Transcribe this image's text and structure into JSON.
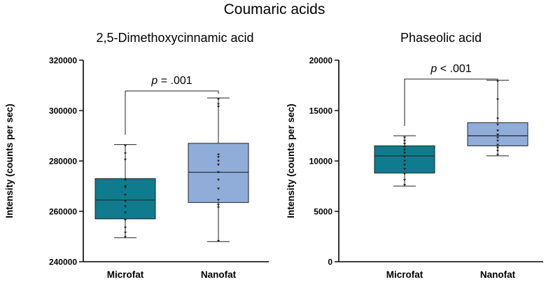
{
  "figure_title": "Coumaric acids",
  "chart_data": [
    {
      "type": "box",
      "title": "2,5-Dimethoxycinnamic acid",
      "ylabel": "Intensity (counts per sec)",
      "xlabel": "",
      "ylim": [
        240000,
        320000
      ],
      "yticks": [
        240000,
        260000,
        280000,
        300000,
        320000
      ],
      "categories": [
        "Microfat",
        "Nanofat"
      ],
      "colors": [
        "#0e7c8e",
        "#8fadd8"
      ],
      "boxes": [
        {
          "name": "Microfat",
          "min": 249500,
          "q1": 257000,
          "median": 264500,
          "q3": 273000,
          "max": 286500,
          "points": [
            249800,
            251500,
            253500,
            256500,
            259500,
            262000,
            264000,
            266500,
            269500,
            270000,
            272500,
            280500,
            283000,
            286000
          ]
        },
        {
          "name": "Nanofat",
          "min": 248000,
          "q1": 263500,
          "median": 275500,
          "q3": 287000,
          "max": 305000,
          "points": [
            248200,
            261500,
            262500,
            264500,
            269000,
            272500,
            275500,
            278500,
            280000,
            281500,
            282500,
            301500,
            302500,
            304500
          ]
        }
      ],
      "annotation": {
        "between": [
          "Microfat",
          "Nanofat"
        ],
        "label": "p = .001",
        "p_symbol": "p",
        "p_text": " = .001",
        "bracket_y": 283000
      }
    },
    {
      "type": "box",
      "title": "Phaseolic acid",
      "ylabel": "Intensity (counts per sec)",
      "xlabel": "",
      "ylim": [
        0,
        20000
      ],
      "yticks": [
        0,
        5000,
        10000,
        15000,
        20000
      ],
      "categories": [
        "Microfat",
        "Nanofat"
      ],
      "colors": [
        "#0e7c8e",
        "#8fadd8"
      ],
      "boxes": [
        {
          "name": "Microfat",
          "min": 7500,
          "q1": 8800,
          "median": 10500,
          "q3": 11500,
          "max": 12500,
          "points": [
            7600,
            8100,
            8700,
            9200,
            9600,
            10000,
            10400,
            10800,
            11100,
            11400,
            11700,
            12000,
            12300
          ]
        },
        {
          "name": "Nanofat",
          "min": 10500,
          "q1": 11500,
          "median": 12500,
          "q3": 13800,
          "max": 18000,
          "points": [
            10600,
            11000,
            11300,
            11600,
            12000,
            12300,
            12600,
            13000,
            13600,
            14200,
            16100,
            17900
          ]
        }
      ],
      "annotation": {
        "between": [
          "Microfat",
          "Nanofat"
        ],
        "label": "p < .001",
        "p_symbol": "p",
        "p_text": " < .001",
        "bracket_y": 16500
      }
    }
  ]
}
